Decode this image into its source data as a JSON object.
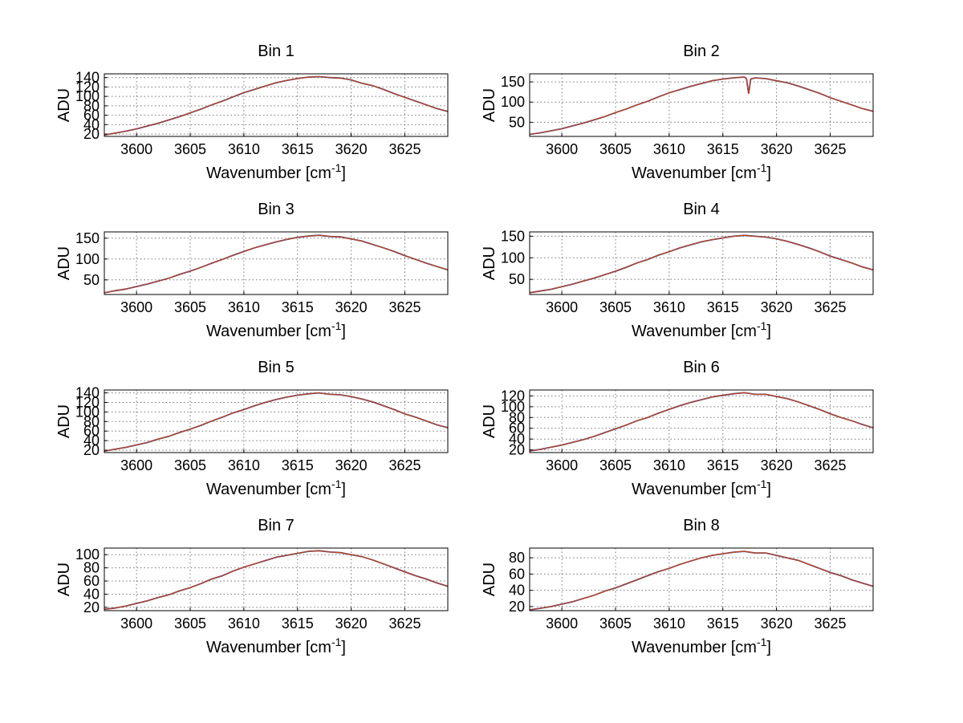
{
  "figure": {
    "background": "#ffffff"
  },
  "chart_common": {
    "type": "line",
    "xlabel_prefix": "Wavenumber [cm",
    "xlabel_sup": "-1",
    "xlabel_suffix": "]",
    "ylabel": "ADU",
    "xlim": [
      3597,
      3629
    ],
    "xticks": [
      3600,
      3605,
      3610,
      3615,
      3620,
      3625
    ],
    "x_start": 3597,
    "x_step": 1,
    "grid": true,
    "legend": "none",
    "series": [
      {
        "name": "trace-blue",
        "color": "#3a46b4"
      },
      {
        "name": "trace-red",
        "color": "#cc4400"
      }
    ]
  },
  "chart_data": [
    {
      "title": "Bin 1",
      "ylim": [
        15,
        148
      ],
      "yticks": [
        20,
        40,
        60,
        80,
        100,
        120,
        140
      ],
      "values": [
        18,
        22,
        26,
        31,
        37,
        43,
        50,
        57,
        65,
        73,
        82,
        90,
        99,
        108,
        115,
        122,
        129,
        134,
        138,
        141,
        142,
        140,
        139,
        135,
        128,
        123,
        115,
        106,
        98,
        90,
        82,
        74,
        68
      ]
    },
    {
      "title": "Bin 2",
      "ylim": [
        15,
        170
      ],
      "yticks": [
        50,
        100,
        150
      ],
      "values": [
        20,
        24,
        29,
        34,
        41,
        48,
        56,
        64,
        74,
        83,
        93,
        102,
        113,
        123,
        131,
        139,
        146,
        153,
        157,
        160,
        162,
        160,
        158,
        153,
        148,
        140,
        131,
        122,
        111,
        102,
        93,
        84,
        77
      ],
      "extra_points": [
        [
          3617.2,
          158
        ],
        [
          3617.4,
          121
        ],
        [
          3617.6,
          157
        ]
      ]
    },
    {
      "title": "Bin 3",
      "ylim": [
        15,
        165
      ],
      "yticks": [
        50,
        100,
        150
      ],
      "values": [
        19,
        24,
        28,
        34,
        40,
        47,
        54,
        63,
        71,
        80,
        90,
        99,
        109,
        118,
        127,
        134,
        141,
        147,
        152,
        155,
        157,
        154,
        153,
        148,
        143,
        135,
        127,
        118,
        108,
        99,
        90,
        82,
        74
      ]
    },
    {
      "title": "Bin 4",
      "ylim": [
        15,
        160
      ],
      "yticks": [
        50,
        100,
        150
      ],
      "values": [
        19,
        23,
        27,
        33,
        39,
        46,
        53,
        61,
        69,
        78,
        88,
        96,
        106,
        114,
        123,
        130,
        137,
        142,
        146,
        150,
        152,
        150,
        148,
        144,
        138,
        131,
        123,
        114,
        104,
        96,
        88,
        79,
        72
      ]
    },
    {
      "title": "Bin 5",
      "ylim": [
        15,
        146
      ],
      "yticks": [
        20,
        40,
        60,
        80,
        100,
        120,
        140
      ],
      "values": [
        18,
        22,
        26,
        31,
        36,
        43,
        49,
        57,
        64,
        72,
        81,
        89,
        98,
        105,
        113,
        120,
        126,
        131,
        135,
        138,
        140,
        137,
        136,
        132,
        127,
        121,
        113,
        105,
        96,
        89,
        81,
        73,
        67
      ]
    },
    {
      "title": "Bin 6",
      "ylim": [
        15,
        131
      ],
      "yticks": [
        20,
        40,
        60,
        80,
        100,
        120
      ],
      "values": [
        18,
        21,
        25,
        29,
        34,
        39,
        45,
        52,
        59,
        66,
        74,
        80,
        88,
        95,
        102,
        108,
        113,
        118,
        121,
        124,
        126,
        123,
        123,
        119,
        115,
        109,
        102,
        95,
        87,
        80,
        74,
        67,
        61
      ]
    },
    {
      "title": "Bin 7",
      "ylim": [
        15,
        110
      ],
      "yticks": [
        20,
        40,
        60,
        80,
        100
      ],
      "values": [
        17,
        19,
        22,
        26,
        30,
        35,
        39,
        45,
        50,
        56,
        63,
        68,
        75,
        81,
        86,
        91,
        96,
        99,
        102,
        105,
        106,
        104,
        103,
        100,
        97,
        92,
        86,
        80,
        74,
        68,
        63,
        57,
        52
      ]
    },
    {
      "title": "Bin 8",
      "ylim": [
        15,
        92
      ],
      "yticks": [
        20,
        40,
        60,
        80
      ],
      "values": [
        16,
        18,
        20,
        23,
        26,
        30,
        34,
        39,
        43,
        48,
        53,
        58,
        63,
        67,
        72,
        76,
        80,
        83,
        85,
        87,
        88,
        86,
        86,
        83,
        80,
        77,
        72,
        67,
        62,
        58,
        53,
        49,
        45
      ]
    }
  ]
}
